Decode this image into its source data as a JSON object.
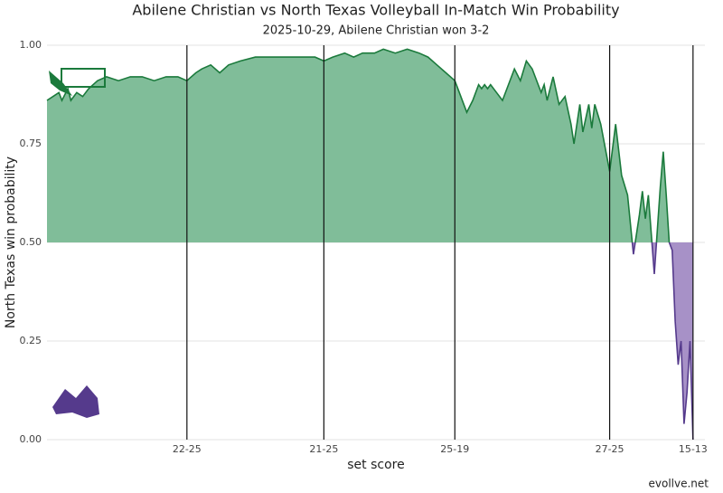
{
  "chart_data": {
    "type": "area",
    "title": "Abilene Christian vs North Texas Volleyball In-Match Win Probability",
    "subtitle": "2025-10-29, Abilene Christian won 3-2",
    "x_label": "set score",
    "y_label": "North Texas win probability",
    "source": "evollve.net",
    "x": [
      0,
      2,
      4,
      5,
      7,
      8,
      10,
      12,
      14,
      17,
      20,
      24,
      28,
      32,
      36,
      40,
      44,
      47,
      50,
      52,
      55,
      58,
      61,
      65,
      70,
      75,
      80,
      85,
      90,
      93,
      96,
      100,
      103,
      106,
      110,
      113,
      117,
      121,
      125,
      128,
      131,
      134,
      137,
      139,
      141,
      143,
      145,
      146,
      147,
      148,
      149,
      151,
      153,
      155,
      157,
      159,
      161,
      163,
      165,
      166,
      167,
      168,
      170,
      172,
      174,
      176,
      177,
      179,
      180,
      182,
      183,
      184,
      186,
      189,
      191,
      193,
      195,
      197,
      199,
      200,
      201,
      202,
      204,
      206,
      207,
      208,
      209,
      210,
      211,
      212,
      213,
      214,
      215,
      216,
      217
    ],
    "values": [
      0.86,
      0.87,
      0.88,
      0.86,
      0.89,
      0.86,
      0.88,
      0.87,
      0.89,
      0.91,
      0.92,
      0.91,
      0.92,
      0.92,
      0.91,
      0.92,
      0.92,
      0.91,
      0.93,
      0.94,
      0.95,
      0.93,
      0.95,
      0.96,
      0.97,
      0.97,
      0.97,
      0.97,
      0.97,
      0.96,
      0.97,
      0.98,
      0.97,
      0.98,
      0.98,
      0.99,
      0.98,
      0.99,
      0.98,
      0.97,
      0.95,
      0.93,
      0.91,
      0.87,
      0.83,
      0.86,
      0.9,
      0.89,
      0.9,
      0.89,
      0.9,
      0.88,
      0.86,
      0.9,
      0.94,
      0.91,
      0.96,
      0.94,
      0.9,
      0.88,
      0.9,
      0.86,
      0.92,
      0.85,
      0.87,
      0.8,
      0.75,
      0.85,
      0.78,
      0.85,
      0.79,
      0.85,
      0.8,
      0.68,
      0.8,
      0.67,
      0.62,
      0.47,
      0.57,
      0.63,
      0.56,
      0.62,
      0.42,
      0.64,
      0.73,
      0.62,
      0.5,
      0.48,
      0.3,
      0.19,
      0.25,
      0.04,
      0.12,
      0.25,
      0.0
    ],
    "xlim": [
      0,
      221
    ],
    "xticks": [
      {
        "value": 47,
        "label": "22-25"
      },
      {
        "value": 93,
        "label": "21-25"
      },
      {
        "value": 137,
        "label": "25-19"
      },
      {
        "value": 189,
        "label": "27-25"
      },
      {
        "value": 217,
        "label": "15-13"
      }
    ],
    "ylim": [
      0,
      1
    ],
    "yticks": [
      {
        "value": 0,
        "label": "0.00"
      },
      {
        "value": 0.25,
        "label": "0.25"
      },
      {
        "value": 0.5,
        "label": "0.50"
      },
      {
        "value": 0.75,
        "label": "0.75"
      },
      {
        "value": 1,
        "label": "1.00"
      }
    ],
    "baseline": 0.5,
    "grid": true,
    "fill_above": "#80bd99",
    "line_above": "#1b7a3c",
    "fill_below": "#a791c7",
    "line_below": "#553a8c"
  }
}
